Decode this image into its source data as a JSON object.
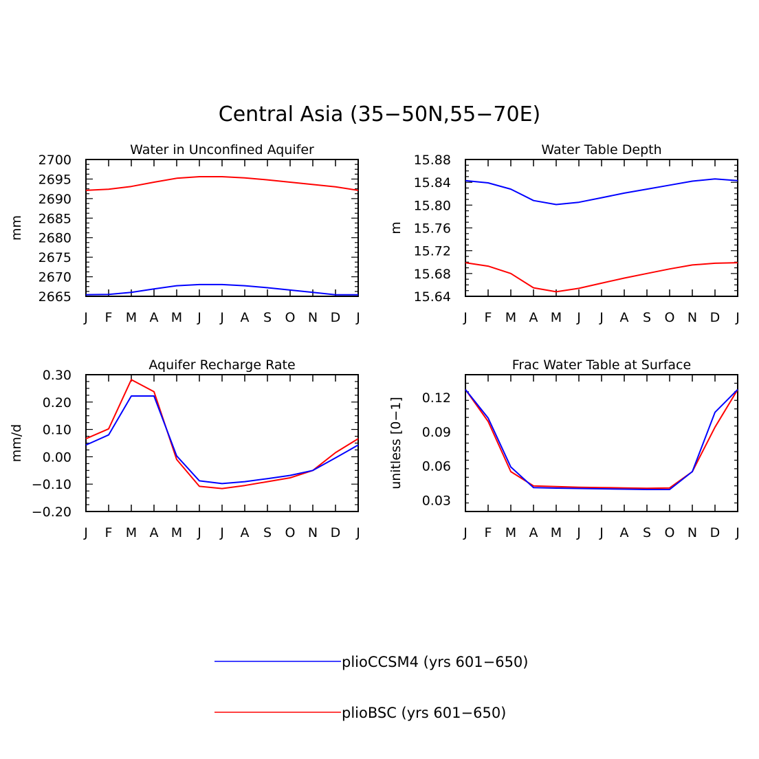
{
  "title": "Central Asia (35-50N,55-70E)",
  "legend": {
    "placement": "bottom-center",
    "entries": [
      {
        "label": "plioCCSM4 (yrs 601-650)",
        "color": "#0000ff"
      },
      {
        "label": "plioBSC (yrs 601-650)",
        "color": "#ff0000"
      }
    ]
  },
  "chart_data": [
    {
      "type": "line",
      "title": "Water in Unconfined Aquifer",
      "xlabel": "",
      "ylabel": "mm",
      "categories": [
        "J",
        "F",
        "M",
        "A",
        "M",
        "J",
        "J",
        "A",
        "S",
        "O",
        "N",
        "D",
        "J"
      ],
      "ylim": [
        2665,
        2700
      ],
      "yticks": [
        2665,
        2670,
        2675,
        2680,
        2685,
        2690,
        2695,
        2700
      ],
      "ytick_labels": [
        "2665",
        "2670",
        "2675",
        "2680",
        "2685",
        "2690",
        "2695",
        "2700"
      ],
      "series": [
        {
          "name": "plioCCSM4 (yrs 601-650)",
          "color": "#0000ff",
          "values": [
            2665.4,
            2665.5,
            2666.0,
            2666.9,
            2667.7,
            2668.0,
            2668.0,
            2667.7,
            2667.2,
            2666.6,
            2666.0,
            2665.4,
            2665.4
          ]
        },
        {
          "name": "plioBSC (yrs 601-650)",
          "color": "#ff0000",
          "values": [
            2692.1,
            2692.4,
            2693.1,
            2694.2,
            2695.2,
            2695.6,
            2695.6,
            2695.3,
            2694.8,
            2694.2,
            2693.6,
            2693.0,
            2692.1
          ]
        }
      ]
    },
    {
      "type": "line",
      "title": "Water Table Depth",
      "xlabel": "",
      "ylabel": "m",
      "categories": [
        "J",
        "F",
        "M",
        "A",
        "M",
        "J",
        "J",
        "A",
        "S",
        "O",
        "N",
        "D",
        "J"
      ],
      "ylim": [
        15.64,
        15.88
      ],
      "yticks": [
        15.64,
        15.68,
        15.72,
        15.76,
        15.8,
        15.84,
        15.88
      ],
      "ytick_labels": [
        "15.64",
        "15.68",
        "15.72",
        "15.76",
        "15.80",
        "15.84",
        "15.88"
      ],
      "series": [
        {
          "name": "plioCCSM4 (yrs 601-650)",
          "color": "#0000ff",
          "values": [
            15.843,
            15.839,
            15.828,
            15.808,
            15.801,
            15.805,
            15.813,
            15.821,
            15.828,
            15.835,
            15.842,
            15.846,
            15.843
          ]
        },
        {
          "name": "plioBSC (yrs 601-650)",
          "color": "#ff0000",
          "values": [
            15.699,
            15.693,
            15.68,
            15.655,
            15.648,
            15.654,
            15.663,
            15.672,
            15.68,
            15.688,
            15.695,
            15.698,
            15.699
          ]
        }
      ]
    },
    {
      "type": "line",
      "title": "Aquifer Recharge Rate",
      "xlabel": "",
      "ylabel": "mm/d",
      "categories": [
        "J",
        "F",
        "M",
        "A",
        "M",
        "J",
        "J",
        "A",
        "S",
        "O",
        "N",
        "D",
        "J"
      ],
      "ylim": [
        -0.2,
        0.3
      ],
      "yticks": [
        -0.2,
        -0.1,
        0.0,
        0.1,
        0.2,
        0.3
      ],
      "ytick_labels": [
        "-0.20",
        "-0.10",
        "0.00",
        "0.10",
        "0.20",
        "0.30"
      ],
      "series": [
        {
          "name": "plioCCSM4 (yrs 601-650)",
          "color": "#0000ff",
          "values": [
            0.043,
            0.08,
            0.222,
            0.222,
            0.003,
            -0.088,
            -0.098,
            -0.091,
            -0.08,
            -0.068,
            -0.05,
            -0.004,
            0.043
          ]
        },
        {
          "name": "plioBSC (yrs 601-650)",
          "color": "#ff0000",
          "values": [
            0.066,
            0.102,
            0.282,
            0.238,
            -0.01,
            -0.108,
            -0.116,
            -0.105,
            -0.091,
            -0.077,
            -0.05,
            0.015,
            0.066
          ]
        }
      ]
    },
    {
      "type": "line",
      "title": "Frac Water Table at Surface",
      "xlabel": "",
      "ylabel": "unitless [0-1]",
      "categories": [
        "J",
        "F",
        "M",
        "A",
        "M",
        "J",
        "J",
        "A",
        "S",
        "O",
        "N",
        "D",
        "J"
      ],
      "ylim": [
        0.02,
        0.14
      ],
      "yticks": [
        0.03,
        0.06,
        0.09,
        0.12
      ],
      "ytick_labels": [
        "0.03",
        "0.06",
        "0.09",
        "0.12"
      ],
      "series": [
        {
          "name": "plioCCSM4 (yrs 601-650)",
          "color": "#0000ff",
          "values": [
            0.127,
            0.102,
            0.059,
            0.041,
            0.0405,
            0.0402,
            0.0399,
            0.0396,
            0.0393,
            0.0393,
            0.055,
            0.107,
            0.127
          ]
        },
        {
          "name": "plioBSC (yrs 601-650)",
          "color": "#ff0000",
          "values": [
            0.127,
            0.099,
            0.055,
            0.0425,
            0.0418,
            0.0413,
            0.041,
            0.0407,
            0.0404,
            0.0407,
            0.055,
            0.094,
            0.127
          ]
        }
      ]
    }
  ]
}
